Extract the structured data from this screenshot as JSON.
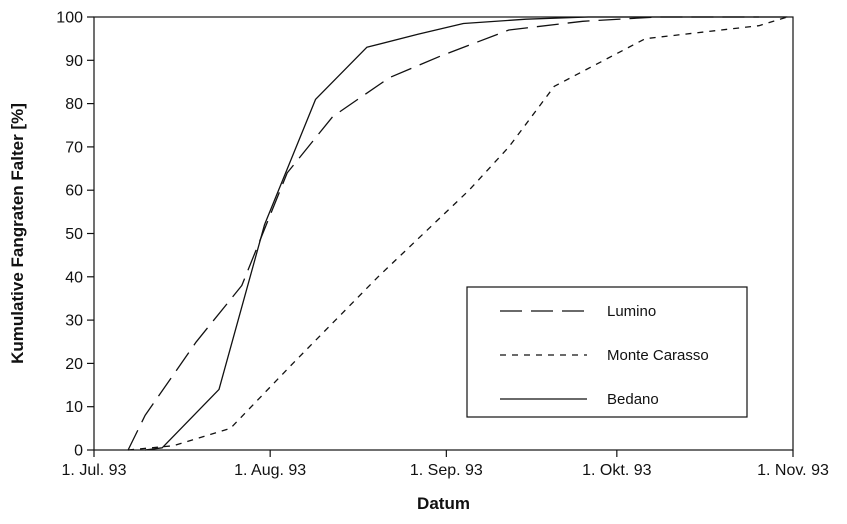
{
  "chart_data": {
    "type": "line",
    "title": "",
    "xlabel": "Datum",
    "ylabel": "Kumulative Fangraten Falter [%]",
    "x_tick_labels": [
      "1. Jul. 93",
      "1. Aug. 93",
      "1. Sep. 93",
      "1. Okt. 93",
      "1. Nov. 93"
    ],
    "x_ticks": [
      "1993-07-01",
      "1993-08-01",
      "1993-09-01",
      "1993-10-01",
      "1993-11-01"
    ],
    "xlim": [
      "1993-07-01",
      "1993-11-01"
    ],
    "y_ticks": [
      0,
      10,
      20,
      30,
      40,
      50,
      60,
      70,
      80,
      90,
      100
    ],
    "ylim": [
      0,
      100
    ],
    "grid": false,
    "legend_position": "lower-right",
    "series": [
      {
        "name": "Lumino",
        "style": "long-dash",
        "color": "#111111",
        "points": [
          [
            "1993-07-07",
            0
          ],
          [
            "1993-07-10",
            8
          ],
          [
            "1993-07-19",
            25
          ],
          [
            "1993-07-27",
            38
          ],
          [
            "1993-08-04",
            64
          ],
          [
            "1993-08-12",
            77
          ],
          [
            "1993-08-22",
            86
          ],
          [
            "1993-08-31",
            91
          ],
          [
            "1993-09-12",
            97
          ],
          [
            "1993-09-25",
            99
          ],
          [
            "1993-10-08",
            100
          ],
          [
            "1993-10-26",
            100
          ]
        ]
      },
      {
        "name": "Monte Carasso",
        "style": "short-dash",
        "color": "#111111",
        "points": [
          [
            "1993-07-07",
            0
          ],
          [
            "1993-07-15",
            1
          ],
          [
            "1993-07-25",
            5
          ],
          [
            "1993-08-05",
            20
          ],
          [
            "1993-08-20",
            40
          ],
          [
            "1993-09-05",
            60
          ],
          [
            "1993-09-12",
            70
          ],
          [
            "1993-09-20",
            84
          ],
          [
            "1993-10-06",
            95
          ],
          [
            "1993-10-26",
            98
          ],
          [
            "1993-10-31",
            100
          ]
        ]
      },
      {
        "name": "Bedano",
        "style": "solid",
        "color": "#111111",
        "points": [
          [
            "1993-07-10",
            0
          ],
          [
            "1993-07-13",
            0.5
          ],
          [
            "1993-07-23",
            14
          ],
          [
            "1993-07-31",
            52
          ],
          [
            "1993-08-09",
            81
          ],
          [
            "1993-08-18",
            93
          ],
          [
            "1993-08-27",
            96
          ],
          [
            "1993-09-04",
            98.5
          ],
          [
            "1993-09-15",
            99.5
          ],
          [
            "1993-09-26",
            100
          ],
          [
            "1993-10-20",
            100
          ],
          [
            "1993-10-31",
            100
          ]
        ]
      }
    ]
  }
}
